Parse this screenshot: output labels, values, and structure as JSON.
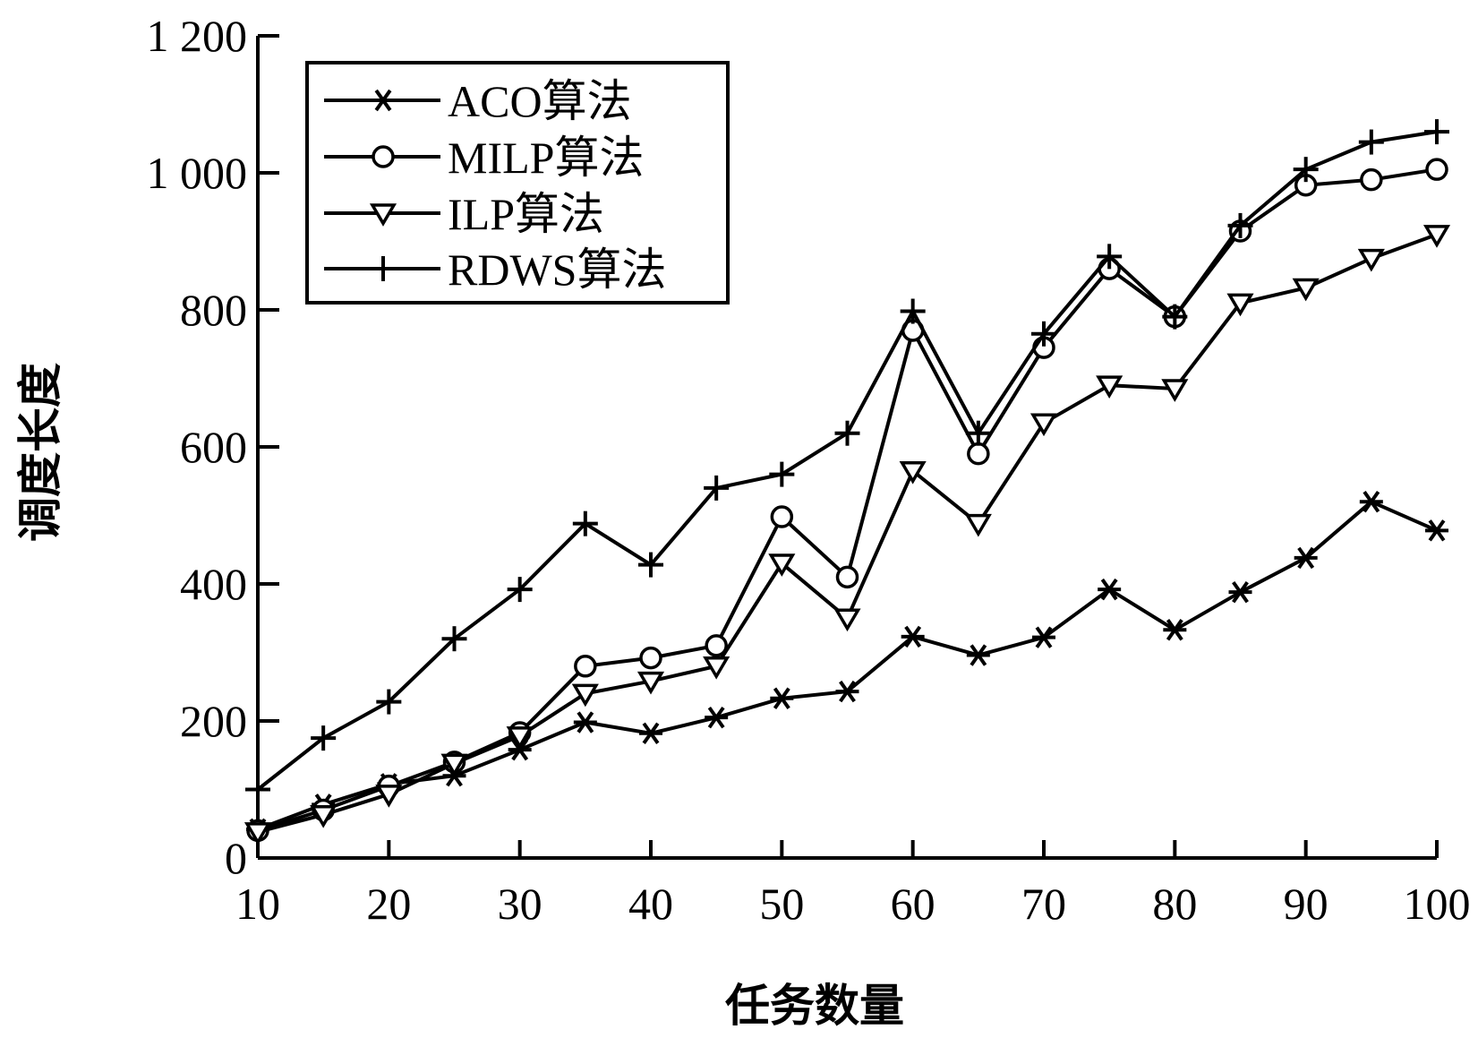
{
  "chart_data": {
    "type": "line",
    "xlabel": "任务数量",
    "ylabel": "调度长度",
    "xlim": [
      10,
      100
    ],
    "ylim": [
      0,
      1200
    ],
    "x_ticks": [
      10,
      20,
      30,
      40,
      50,
      60,
      70,
      80,
      90,
      100
    ],
    "x_tick_labels": [
      "10",
      "20",
      "30",
      "40",
      "50",
      "60",
      "70",
      "80",
      "90",
      "100"
    ],
    "y_ticks": [
      0,
      200,
      400,
      600,
      800,
      1000,
      1200
    ],
    "y_tick_labels": [
      "0",
      "200",
      "400",
      "600",
      "800",
      "1 000",
      "1 200"
    ],
    "legend_position": "top-left",
    "grid": false,
    "x": [
      10,
      15,
      20,
      25,
      30,
      35,
      40,
      45,
      50,
      55,
      60,
      65,
      70,
      75,
      80,
      85,
      90,
      95,
      100
    ],
    "series": [
      {
        "name": "ACO算法",
        "marker": "asterisk",
        "values": [
          42,
          78,
          108,
          120,
          158,
          198,
          182,
          205,
          233,
          243,
          323,
          296,
          322,
          392,
          333,
          388,
          438,
          520,
          478
        ]
      },
      {
        "name": "MILP算法",
        "marker": "circle",
        "values": [
          40,
          70,
          105,
          140,
          183,
          280,
          292,
          310,
          498,
          410,
          770,
          590,
          745,
          860,
          790,
          915,
          982,
          990,
          1005
        ]
      },
      {
        "name": "ILP算法",
        "marker": "triangle-down",
        "values": [
          38,
          63,
          93,
          138,
          178,
          240,
          258,
          280,
          430,
          350,
          565,
          488,
          635,
          690,
          685,
          810,
          832,
          875,
          910
        ]
      },
      {
        "name": "RDWS算法",
        "marker": "plus",
        "values": [
          100,
          175,
          228,
          320,
          392,
          488,
          428,
          540,
          560,
          620,
          798,
          620,
          765,
          878,
          790,
          923,
          1005,
          1045,
          1060
        ]
      }
    ]
  }
}
